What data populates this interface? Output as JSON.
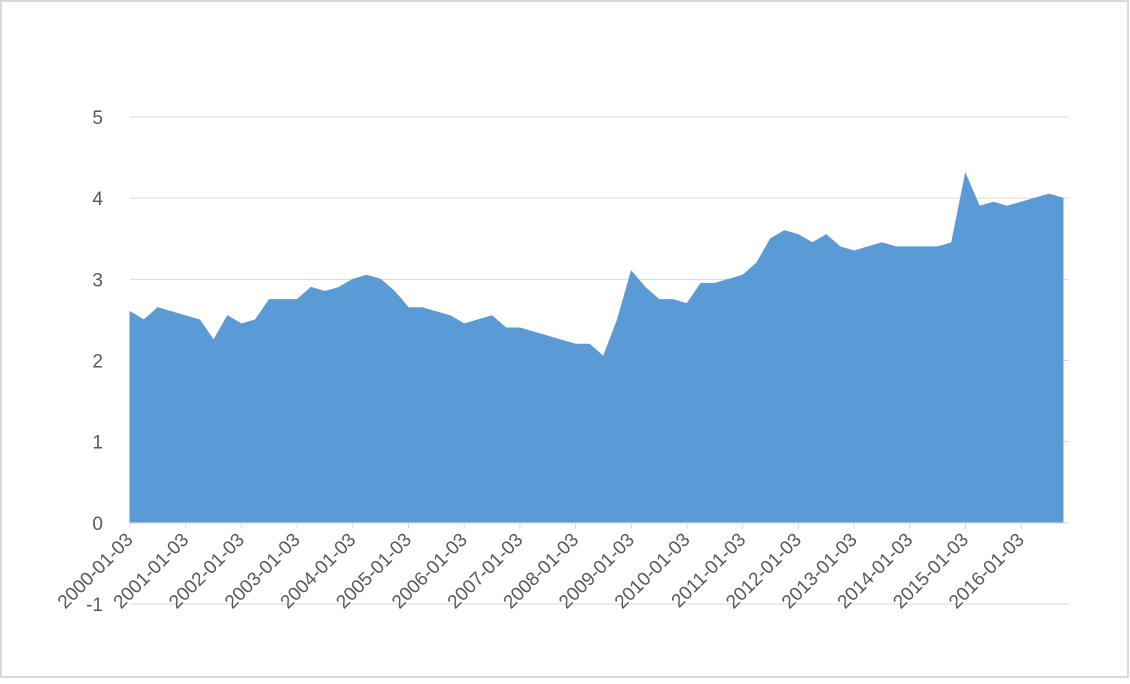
{
  "chart_data": {
    "type": "area",
    "categories": [
      "2000-01-03",
      null,
      null,
      null,
      "2001-01-03",
      null,
      null,
      null,
      "2002-01-03",
      null,
      null,
      null,
      "2003-01-03",
      null,
      null,
      null,
      "2004-01-03",
      null,
      null,
      null,
      "2005-01-03",
      null,
      null,
      null,
      "2006-01-03",
      null,
      null,
      null,
      "2007-01-03",
      null,
      null,
      null,
      "2008-01-03",
      null,
      null,
      null,
      "2009-01-03",
      null,
      null,
      null,
      "2010-01-03",
      null,
      null,
      null,
      "2011-01-03",
      null,
      null,
      null,
      "2012-01-03",
      null,
      null,
      null,
      "2013-01-03",
      null,
      null,
      null,
      "2014-01-03",
      null,
      null,
      null,
      "2015-01-03",
      null,
      null,
      null,
      "2016-01-03",
      null,
      null,
      null
    ],
    "values": [
      2.6,
      2.5,
      2.65,
      2.6,
      2.55,
      2.5,
      2.25,
      2.55,
      2.45,
      2.5,
      2.75,
      2.75,
      2.75,
      2.9,
      2.85,
      2.9,
      3.0,
      3.05,
      3.0,
      2.85,
      2.65,
      2.65,
      2.6,
      2.55,
      2.45,
      2.5,
      2.55,
      2.4,
      2.4,
      2.35,
      2.3,
      2.25,
      2.2,
      2.2,
      2.05,
      2.5,
      3.1,
      2.9,
      2.75,
      2.75,
      2.7,
      2.95,
      2.95,
      3.0,
      3.05,
      3.2,
      3.5,
      3.6,
      3.55,
      3.45,
      3.55,
      3.4,
      3.35,
      3.4,
      3.45,
      3.4,
      3.4,
      3.4,
      3.4,
      3.45,
      4.3,
      3.9,
      3.95,
      3.9,
      3.95,
      4.0,
      4.05,
      4.0
    ],
    "color": "#5b9bd5",
    "ylim": [
      -1,
      5
    ],
    "yticks": [
      -1,
      0,
      1,
      2,
      3,
      4,
      5
    ],
    "grid": true
  }
}
